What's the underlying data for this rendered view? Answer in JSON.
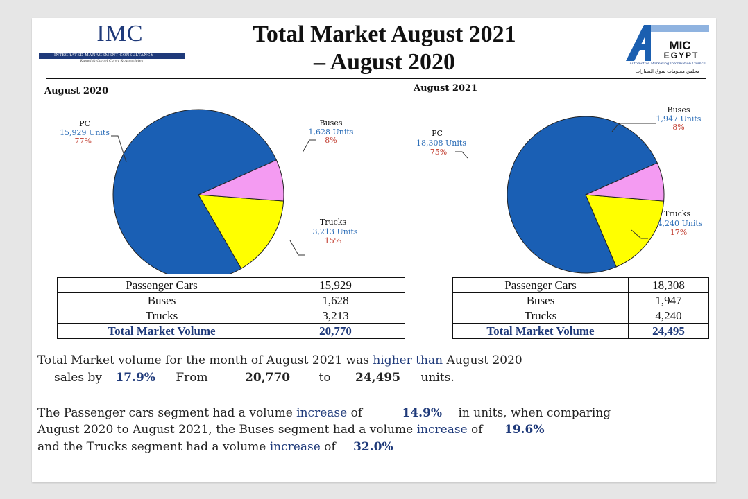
{
  "header": {
    "imc_logo": "IMC",
    "imc_bar_text": "INTEGRATED MANAGEMENT CONSULTANCY",
    "imc_tagline": "Kamel & Camel Carey & Associates",
    "title_line1": "Total Market August 2021",
    "title_line2": "– August 2020",
    "amic_logo_top": "MIC",
    "amic_logo_bottom": "EGYPT",
    "amic_subtitle": "Automotive Marketing Information Council",
    "amic_arabic": "مجلس معلومات سوق السيارات"
  },
  "colors": {
    "pc": "#1a5fb4",
    "buses": "#f49bf2",
    "trucks": "#ffff00",
    "value_blue": "#2e6fb8",
    "pct_red": "#c0392b"
  },
  "chart_data": [
    {
      "type": "pie",
      "title": "August 2020",
      "slices": [
        {
          "label": "PC",
          "units": "15,929 Units",
          "pct": "77%",
          "value": 15929
        },
        {
          "label": "Buses",
          "units": "1,628 Units",
          "pct": "8%",
          "value": 1628
        },
        {
          "label": "Trucks",
          "units": "3,213 Units",
          "pct": "15%",
          "value": 3213
        }
      ]
    },
    {
      "type": "pie",
      "title": "August 2021",
      "slices": [
        {
          "label": "PC",
          "units": "18,308 Units",
          "pct": "75%",
          "value": 18308
        },
        {
          "label": "Buses",
          "units": "1,947 Units",
          "pct": "8%",
          "value": 1947
        },
        {
          "label": "Trucks",
          "units": "4,240 Units",
          "pct": "17%",
          "value": 4240
        }
      ]
    }
  ],
  "tables": [
    {
      "rows": [
        {
          "label": "Passenger Cars",
          "value": "15,929"
        },
        {
          "label": "Buses",
          "value": "1,628"
        },
        {
          "label": "Trucks",
          "value": "3,213"
        }
      ],
      "total_label": "Total Market Volume",
      "total_value": "20,770"
    },
    {
      "rows": [
        {
          "label": "Passenger Cars",
          "value": "18,308"
        },
        {
          "label": "Buses",
          "value": "1,947"
        },
        {
          "label": "Trucks",
          "value": "4,240"
        }
      ],
      "total_label": "Total Market Volume",
      "total_value": "24,495"
    }
  ],
  "summary": {
    "line1_a": "Total Market volume for the month of August 2021 was",
    "line1_b": "higher than",
    "line1_c": "August 2020",
    "line2_a": "sales by",
    "line2_pct": "17.9%",
    "line2_from": "From",
    "line2_v1": "20,770",
    "line2_to": "to",
    "line2_v2": "24,495",
    "line2_units": "units.",
    "p2_a": "The Passenger cars segment had a volume",
    "p2_inc1": "increase",
    "p2_of1": "of",
    "p2_pct1": "14.9%",
    "p2_b": "in units, when comparing",
    "p2_c": "August 2020 to August 2021, the Buses segment had a volume",
    "p2_inc2": "increase",
    "p2_of2": "of",
    "p2_pct2": "19.6%",
    "p2_d": "and the Trucks segment had a volume",
    "p2_inc3": "increase",
    "p2_of3": "of",
    "p2_pct3": "32.0%"
  }
}
